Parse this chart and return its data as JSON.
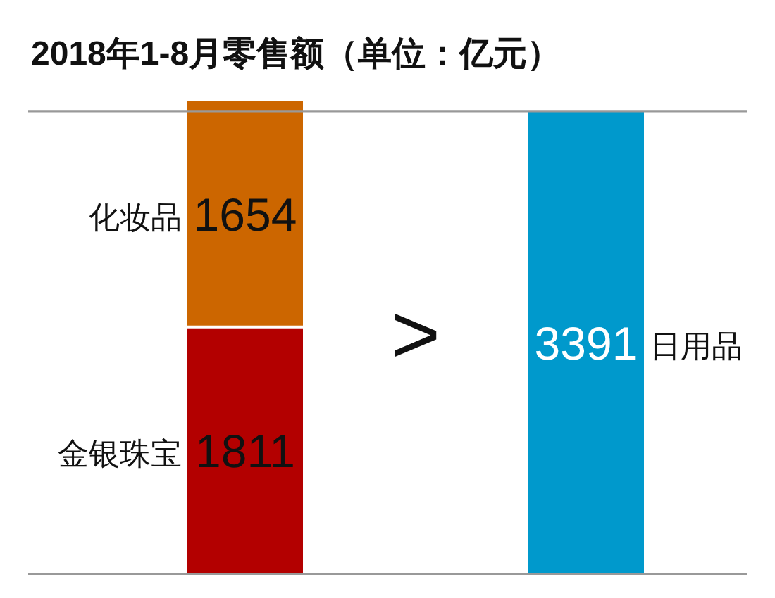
{
  "chart_data": {
    "type": "bar",
    "title": "2018年1-8月零售额（单位：亿元）",
    "stacked": true,
    "categories": [
      null,
      null
    ],
    "series": [
      {
        "name": "金银珠宝",
        "color": "#b30000",
        "values": [
          1811,
          null
        ]
      },
      {
        "name": "化妆品",
        "color": "#cc6600",
        "values": [
          1654,
          null
        ]
      },
      {
        "name": "日用品",
        "color": "#0099cc",
        "values": [
          null,
          3391
        ]
      }
    ],
    "data_labels": true,
    "ref_lines": [
      {
        "axis": "y",
        "value": 3391,
        "color": "#999999"
      }
    ],
    "annotations": [
      ">"
    ]
  }
}
